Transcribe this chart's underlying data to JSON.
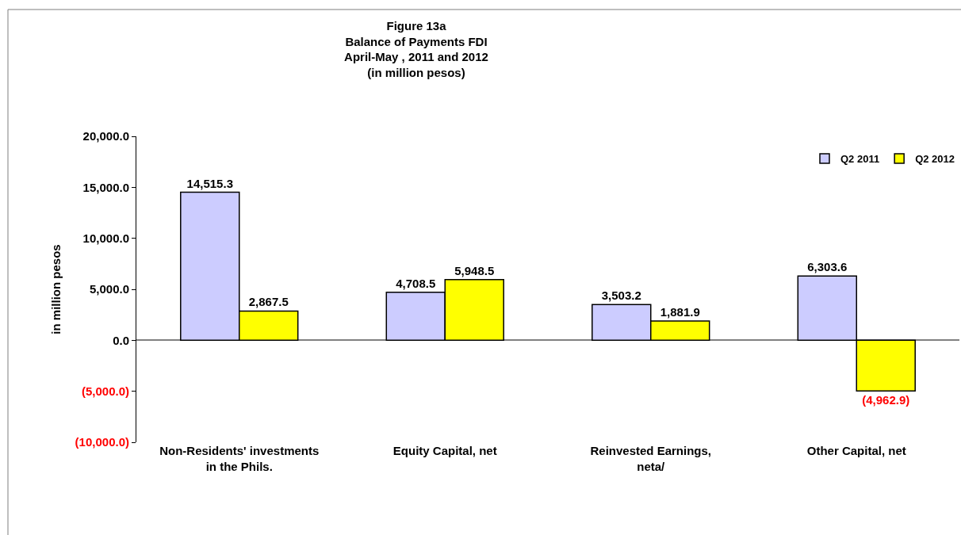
{
  "chart_data": {
    "type": "bar",
    "title": "Figure 13a\nBalance of Payments FDI\nApril-May , 2011 and 2012\n(in million pesos)",
    "ylabel": "in million pesos",
    "categories": [
      "Non-Residents' investments\nin the Phils.",
      "Equity Capital, net",
      "Reinvested Earnings,\nneta/",
      "Other Capital, net"
    ],
    "series": [
      {
        "name": "Q2 2011",
        "color": "#ccccff",
        "values": [
          14515.3,
          4708.5,
          3503.2,
          6303.6
        ],
        "value_labels": [
          "14,515.3",
          "4,708.5",
          "3,503.2",
          "6,303.6"
        ]
      },
      {
        "name": "Q2 2012",
        "color": "#ffff00",
        "values": [
          2867.5,
          5948.5,
          1881.9,
          -4962.9
        ],
        "value_labels": [
          "2,867.5",
          "5,948.5",
          "1,881.9",
          "(4,962.9)"
        ]
      }
    ],
    "ylim": [
      -10000,
      20000
    ],
    "yticks": [
      {
        "value": -10000,
        "label": "(10,000.0)"
      },
      {
        "value": -5000,
        "label": "(5,000.0)"
      },
      {
        "value": 0,
        "label": "0.0"
      },
      {
        "value": 5000,
        "label": "5,000.0"
      },
      {
        "value": 10000,
        "label": "10,000.0"
      },
      {
        "value": 15000,
        "label": "15,000.0"
      },
      {
        "value": 20000,
        "label": "20,000.0"
      }
    ],
    "legend": "top right"
  }
}
